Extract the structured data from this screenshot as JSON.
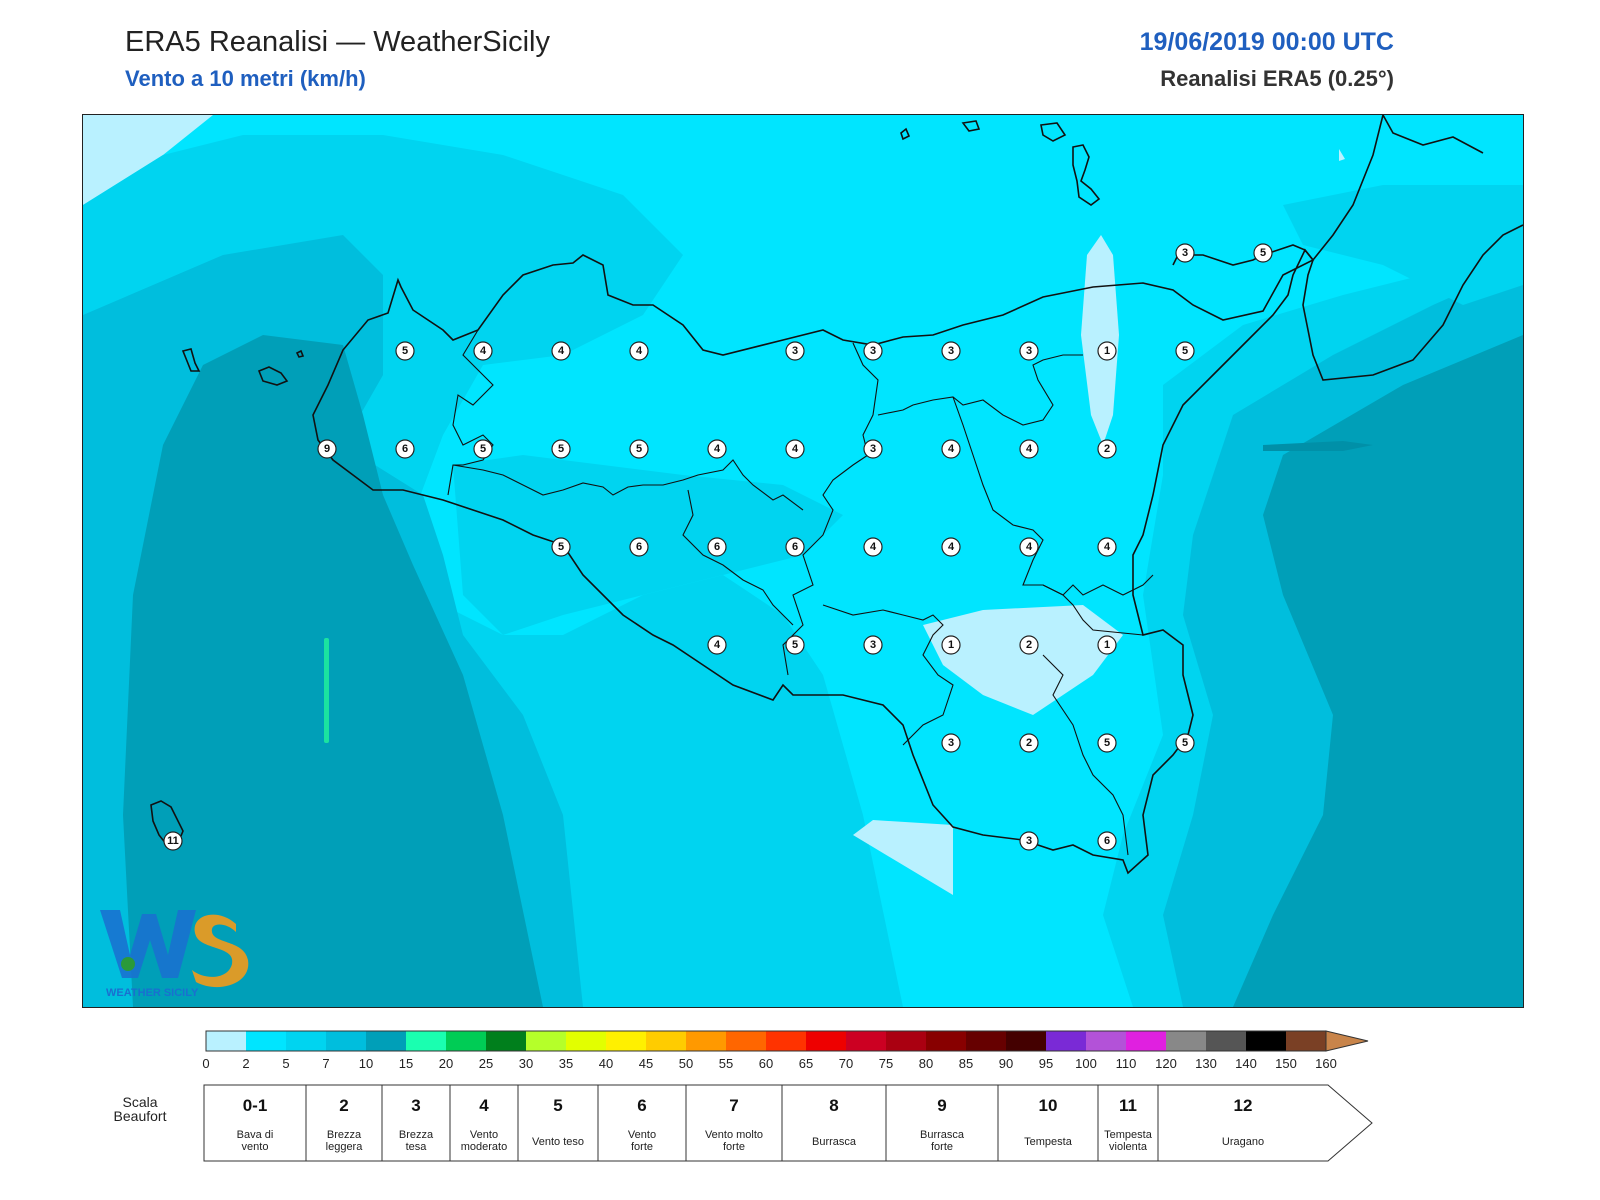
{
  "header": {
    "title": "ERA5 Reanalisi — WeatherSicily",
    "subtitle": "Vento a 10 metri (km/h)",
    "datetime": "19/06/2019 00:00 UTC",
    "source": "Reanalisi ERA5 (0.25°)"
  },
  "logo": {
    "icon": "ws-logo-icon",
    "text": "WEATHER SICILY"
  },
  "colorbar": {
    "ticks": [
      "0",
      "2",
      "5",
      "7",
      "10",
      "15",
      "20",
      "25",
      "30",
      "35",
      "40",
      "45",
      "50",
      "55",
      "60",
      "65",
      "70",
      "75",
      "80",
      "85",
      "90",
      "95",
      "100",
      "110",
      "120",
      "130",
      "140",
      "150",
      "160"
    ],
    "colors": [
      "#b9f1ff",
      "#00e5ff",
      "#00d4f0",
      "#00bedd",
      "#009fb8",
      "#1affb0",
      "#00cc55",
      "#007f1c",
      "#b5ff2a",
      "#e2ff00",
      "#fff000",
      "#ffcc00",
      "#ff9900",
      "#ff6600",
      "#ff3300",
      "#ee0000",
      "#cc0022",
      "#aa0011",
      "#880000",
      "#660000",
      "#440000",
      "#7a2ad6",
      "#b352d8",
      "#e020e0",
      "#888888",
      "#555555",
      "#000000",
      "#7a4025",
      "#c8844a"
    ]
  },
  "beaufort": {
    "label": "Scala Beaufort",
    "cells": [
      {
        "num": "0-1",
        "desc": "Bava di vento"
      },
      {
        "num": "2",
        "desc": "Brezza leggera"
      },
      {
        "num": "3",
        "desc": "Brezza tesa"
      },
      {
        "num": "4",
        "desc": "Vento moderato"
      },
      {
        "num": "5",
        "desc": "Vento teso"
      },
      {
        "num": "6",
        "desc": "Vento forte"
      },
      {
        "num": "7",
        "desc": "Vento molto forte"
      },
      {
        "num": "8",
        "desc": "Burrasca"
      },
      {
        "num": "9",
        "desc": "Burrasca forte"
      },
      {
        "num": "10",
        "desc": "Tempesta"
      },
      {
        "num": "11",
        "desc": "Tempesta violenta"
      },
      {
        "num": "12",
        "desc": "Uragano"
      }
    ]
  },
  "stations": {
    "row1": [
      "5",
      "4",
      "4",
      "4",
      "3",
      "3",
      "3",
      "3",
      "1",
      "5"
    ],
    "row2": [
      "9",
      "6",
      "5",
      "5",
      "5",
      "4",
      "4",
      "3",
      "4",
      "4",
      "2"
    ],
    "row3": [
      "5",
      "6",
      "6",
      "6",
      "4",
      "4",
      "4",
      "4"
    ],
    "row4": [
      "4",
      "5",
      "3",
      "1",
      "2",
      "1"
    ],
    "row5": [
      "3",
      "2",
      "5",
      "5"
    ],
    "row6": [
      "3",
      "6"
    ],
    "calabria": [
      "3",
      "5"
    ],
    "pantelleria": "11"
  }
}
